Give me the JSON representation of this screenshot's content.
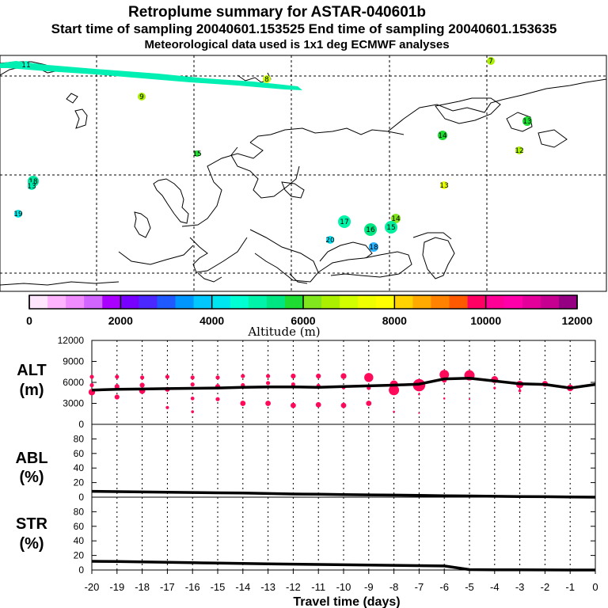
{
  "title": {
    "line1": "Retroplume summary for ASTAR-040601b",
    "line2": "Start time of sampling 20040601.153525     End time of sampling 20040601.153635",
    "line3": "Meteorological data used is 1x1 deg ECMWF analyses"
  },
  "colorbar": {
    "colors": [
      "#ffe6ff",
      "#ffb4ff",
      "#f08cff",
      "#d264ff",
      "#aa00ff",
      "#7800ff",
      "#4b28ff",
      "#1e5aff",
      "#0096ff",
      "#00c8ff",
      "#00e6f0",
      "#00ffd2",
      "#00f5aa",
      "#00e682",
      "#1edc32",
      "#82e61e",
      "#aaf000",
      "#d2ff00",
      "#f0ff00",
      "#ffff00",
      "#ffd200",
      "#ffaa00",
      "#ff8200",
      "#ff5a00",
      "#ff0064",
      "#ff0096",
      "#ff00aa",
      "#e6009b",
      "#c80091",
      "#960082"
    ],
    "tick_labels": [
      "0",
      "2000",
      "4000",
      "6000",
      "8000",
      "10000",
      "12000"
    ],
    "label": "Altitude  (m)"
  },
  "map_points": [
    {
      "label": "11",
      "color": "#00ffc8"
    },
    {
      "label": "7",
      "color": "#aaf000"
    },
    {
      "label": "8",
      "color": "#c8ff00"
    },
    {
      "label": "9",
      "color": "#aaf000"
    },
    {
      "label": "13",
      "color": "#1edc32"
    },
    {
      "label": "14",
      "color": "#1edc32"
    },
    {
      "label": "15",
      "color": "#1edc32"
    },
    {
      "label": "12",
      "color": "#aaf000"
    },
    {
      "label": "18",
      "color": "#00e6a0"
    },
    {
      "label": "13",
      "color": "#00f0b4"
    },
    {
      "label": "13",
      "color": "#e6ff00"
    },
    {
      "label": "19",
      "color": "#00e6e6"
    },
    {
      "label": "17",
      "color": "#00f5aa"
    },
    {
      "label": "14",
      "color": "#82e61e"
    },
    {
      "label": "16",
      "color": "#00e682"
    },
    {
      "label": "15",
      "color": "#00f0a0"
    },
    {
      "label": "20",
      "color": "#00dcf0"
    },
    {
      "label": "18",
      "color": "#28b4ff"
    }
  ],
  "panels": {
    "alt": {
      "label_line1": "ALT",
      "label_line2": "(m)",
      "yticks": [
        "0",
        "3000",
        "6000",
        "9000",
        "12000"
      ],
      "ylim": [
        0,
        12000
      ]
    },
    "abl": {
      "label_line1": "ABL",
      "label_line2": "(%)",
      "yticks": [
        "0",
        "20",
        "40",
        "60",
        "80"
      ],
      "ylim": [
        0,
        100
      ]
    },
    "str": {
      "label_line1": "STR",
      "label_line2": "(%)",
      "yticks": [
        "0",
        "20",
        "40",
        "60",
        "80"
      ],
      "ylim": [
        0,
        100
      ]
    }
  },
  "xaxis": {
    "label": "Travel time (days)",
    "ticks": [
      "-20",
      "-19",
      "-18",
      "-17",
      "-16",
      "-15",
      "-14",
      "-13",
      "-12",
      "-11",
      "-10",
      "-9",
      "-8",
      "-7",
      "-6",
      "-5",
      "-4",
      "-3",
      "-2",
      "-1",
      "0"
    ],
    "xlim": [
      -20,
      0
    ]
  },
  "chart_data": {
    "type": "line",
    "x": [
      -20,
      -19,
      -18,
      -17,
      -16,
      -15,
      -14,
      -13,
      -12,
      -11,
      -10,
      -9,
      -8,
      -7,
      -6,
      -5,
      -4,
      -3,
      -2,
      -1,
      0
    ],
    "series": [
      {
        "name": "ALT mean altitude (m)",
        "values": [
          4900,
          5000,
          5050,
          5100,
          5150,
          5200,
          5300,
          5350,
          5350,
          5300,
          5400,
          5500,
          5600,
          5750,
          6500,
          6600,
          6200,
          5800,
          5700,
          5200,
          5700
        ]
      },
      {
        "name": "ABL (%)",
        "values": [
          8,
          7.6,
          7.2,
          6.8,
          6.4,
          6,
          5.6,
          5,
          4.4,
          4,
          3.6,
          3.2,
          2.8,
          2.4,
          2,
          1.6,
          1.2,
          0.9,
          0.6,
          0.3,
          0
        ]
      },
      {
        "name": "STR (%)",
        "values": [
          12,
          11.7,
          11.2,
          10.6,
          10,
          9.5,
          9,
          8.5,
          8,
          7.6,
          7.2,
          6.8,
          6.4,
          6,
          5.5,
          0.5,
          0.3,
          0.2,
          0.1,
          0,
          0
        ]
      }
    ],
    "alt_clusters": [
      {
        "x": -20,
        "y": 6800,
        "s": 1
      },
      {
        "x": -20,
        "y": 5600,
        "s": 1
      },
      {
        "x": -20,
        "y": 4600,
        "s": 1.6
      },
      {
        "x": -19,
        "y": 6800,
        "s": 1
      },
      {
        "x": -19,
        "y": 5400,
        "s": 1.2
      },
      {
        "x": -19,
        "y": 3900,
        "s": 1.2
      },
      {
        "x": -18,
        "y": 6700,
        "s": 1
      },
      {
        "x": -18,
        "y": 5600,
        "s": 1.2
      },
      {
        "x": -18,
        "y": 4800,
        "s": 1.5
      },
      {
        "x": -17,
        "y": 6800,
        "s": 1
      },
      {
        "x": -17,
        "y": 5000,
        "s": 1.2
      },
      {
        "x": -17,
        "y": 2400,
        "s": 0.8
      },
      {
        "x": -16,
        "y": 6700,
        "s": 1
      },
      {
        "x": -16,
        "y": 5700,
        "s": 1
      },
      {
        "x": -16,
        "y": 3700,
        "s": 0.9
      },
      {
        "x": -16,
        "y": 1800,
        "s": 0.7
      },
      {
        "x": -15,
        "y": 6700,
        "s": 1
      },
      {
        "x": -15,
        "y": 5400,
        "s": 1.2
      },
      {
        "x": -15,
        "y": 3600,
        "s": 1
      },
      {
        "x": -14,
        "y": 6900,
        "s": 1
      },
      {
        "x": -14,
        "y": 5600,
        "s": 1
      },
      {
        "x": -14,
        "y": 3000,
        "s": 1.3
      },
      {
        "x": -13,
        "y": 6900,
        "s": 1
      },
      {
        "x": -13,
        "y": 5900,
        "s": 1
      },
      {
        "x": -13,
        "y": 3000,
        "s": 1.3
      },
      {
        "x": -12,
        "y": 6900,
        "s": 1.2
      },
      {
        "x": -12,
        "y": 5700,
        "s": 1
      },
      {
        "x": -12,
        "y": 2700,
        "s": 1.3
      },
      {
        "x": -11,
        "y": 6900,
        "s": 1.2
      },
      {
        "x": -11,
        "y": 5500,
        "s": 1
      },
      {
        "x": -11,
        "y": 2800,
        "s": 1.3
      },
      {
        "x": -10,
        "y": 6900,
        "s": 1.4
      },
      {
        "x": -10,
        "y": 5300,
        "s": 1
      },
      {
        "x": -10,
        "y": 2700,
        "s": 1.3
      },
      {
        "x": -9,
        "y": 6700,
        "s": 2.2
      },
      {
        "x": -9,
        "y": 5200,
        "s": 1
      },
      {
        "x": -9,
        "y": 3000,
        "s": 1.3
      },
      {
        "x": -8,
        "y": 5700,
        "s": 2
      },
      {
        "x": -8,
        "y": 4900,
        "s": 2.5
      },
      {
        "x": -8,
        "y": 1800,
        "s": 0.5
      },
      {
        "x": -7,
        "y": 5600,
        "s": 3
      },
      {
        "x": -7,
        "y": 4300,
        "s": 0.5
      },
      {
        "x": -7,
        "y": 1600,
        "s": 0.4
      },
      {
        "x": -6,
        "y": 7100,
        "s": 2.3
      },
      {
        "x": -6,
        "y": 6300,
        "s": 1.2
      },
      {
        "x": -6,
        "y": 3700,
        "s": 0.5
      },
      {
        "x": -5,
        "y": 7000,
        "s": 2.5
      },
      {
        "x": -5,
        "y": 3600,
        "s": 0.4
      },
      {
        "x": -4,
        "y": 6400,
        "s": 1.7
      },
      {
        "x": -4,
        "y": 5200,
        "s": 0.6
      },
      {
        "x": -3,
        "y": 5700,
        "s": 1.8
      },
      {
        "x": -3,
        "y": 4800,
        "s": 0.7
      },
      {
        "x": -2,
        "y": 5800,
        "s": 1.4
      },
      {
        "x": -1,
        "y": 5200,
        "s": 1.6
      }
    ]
  }
}
